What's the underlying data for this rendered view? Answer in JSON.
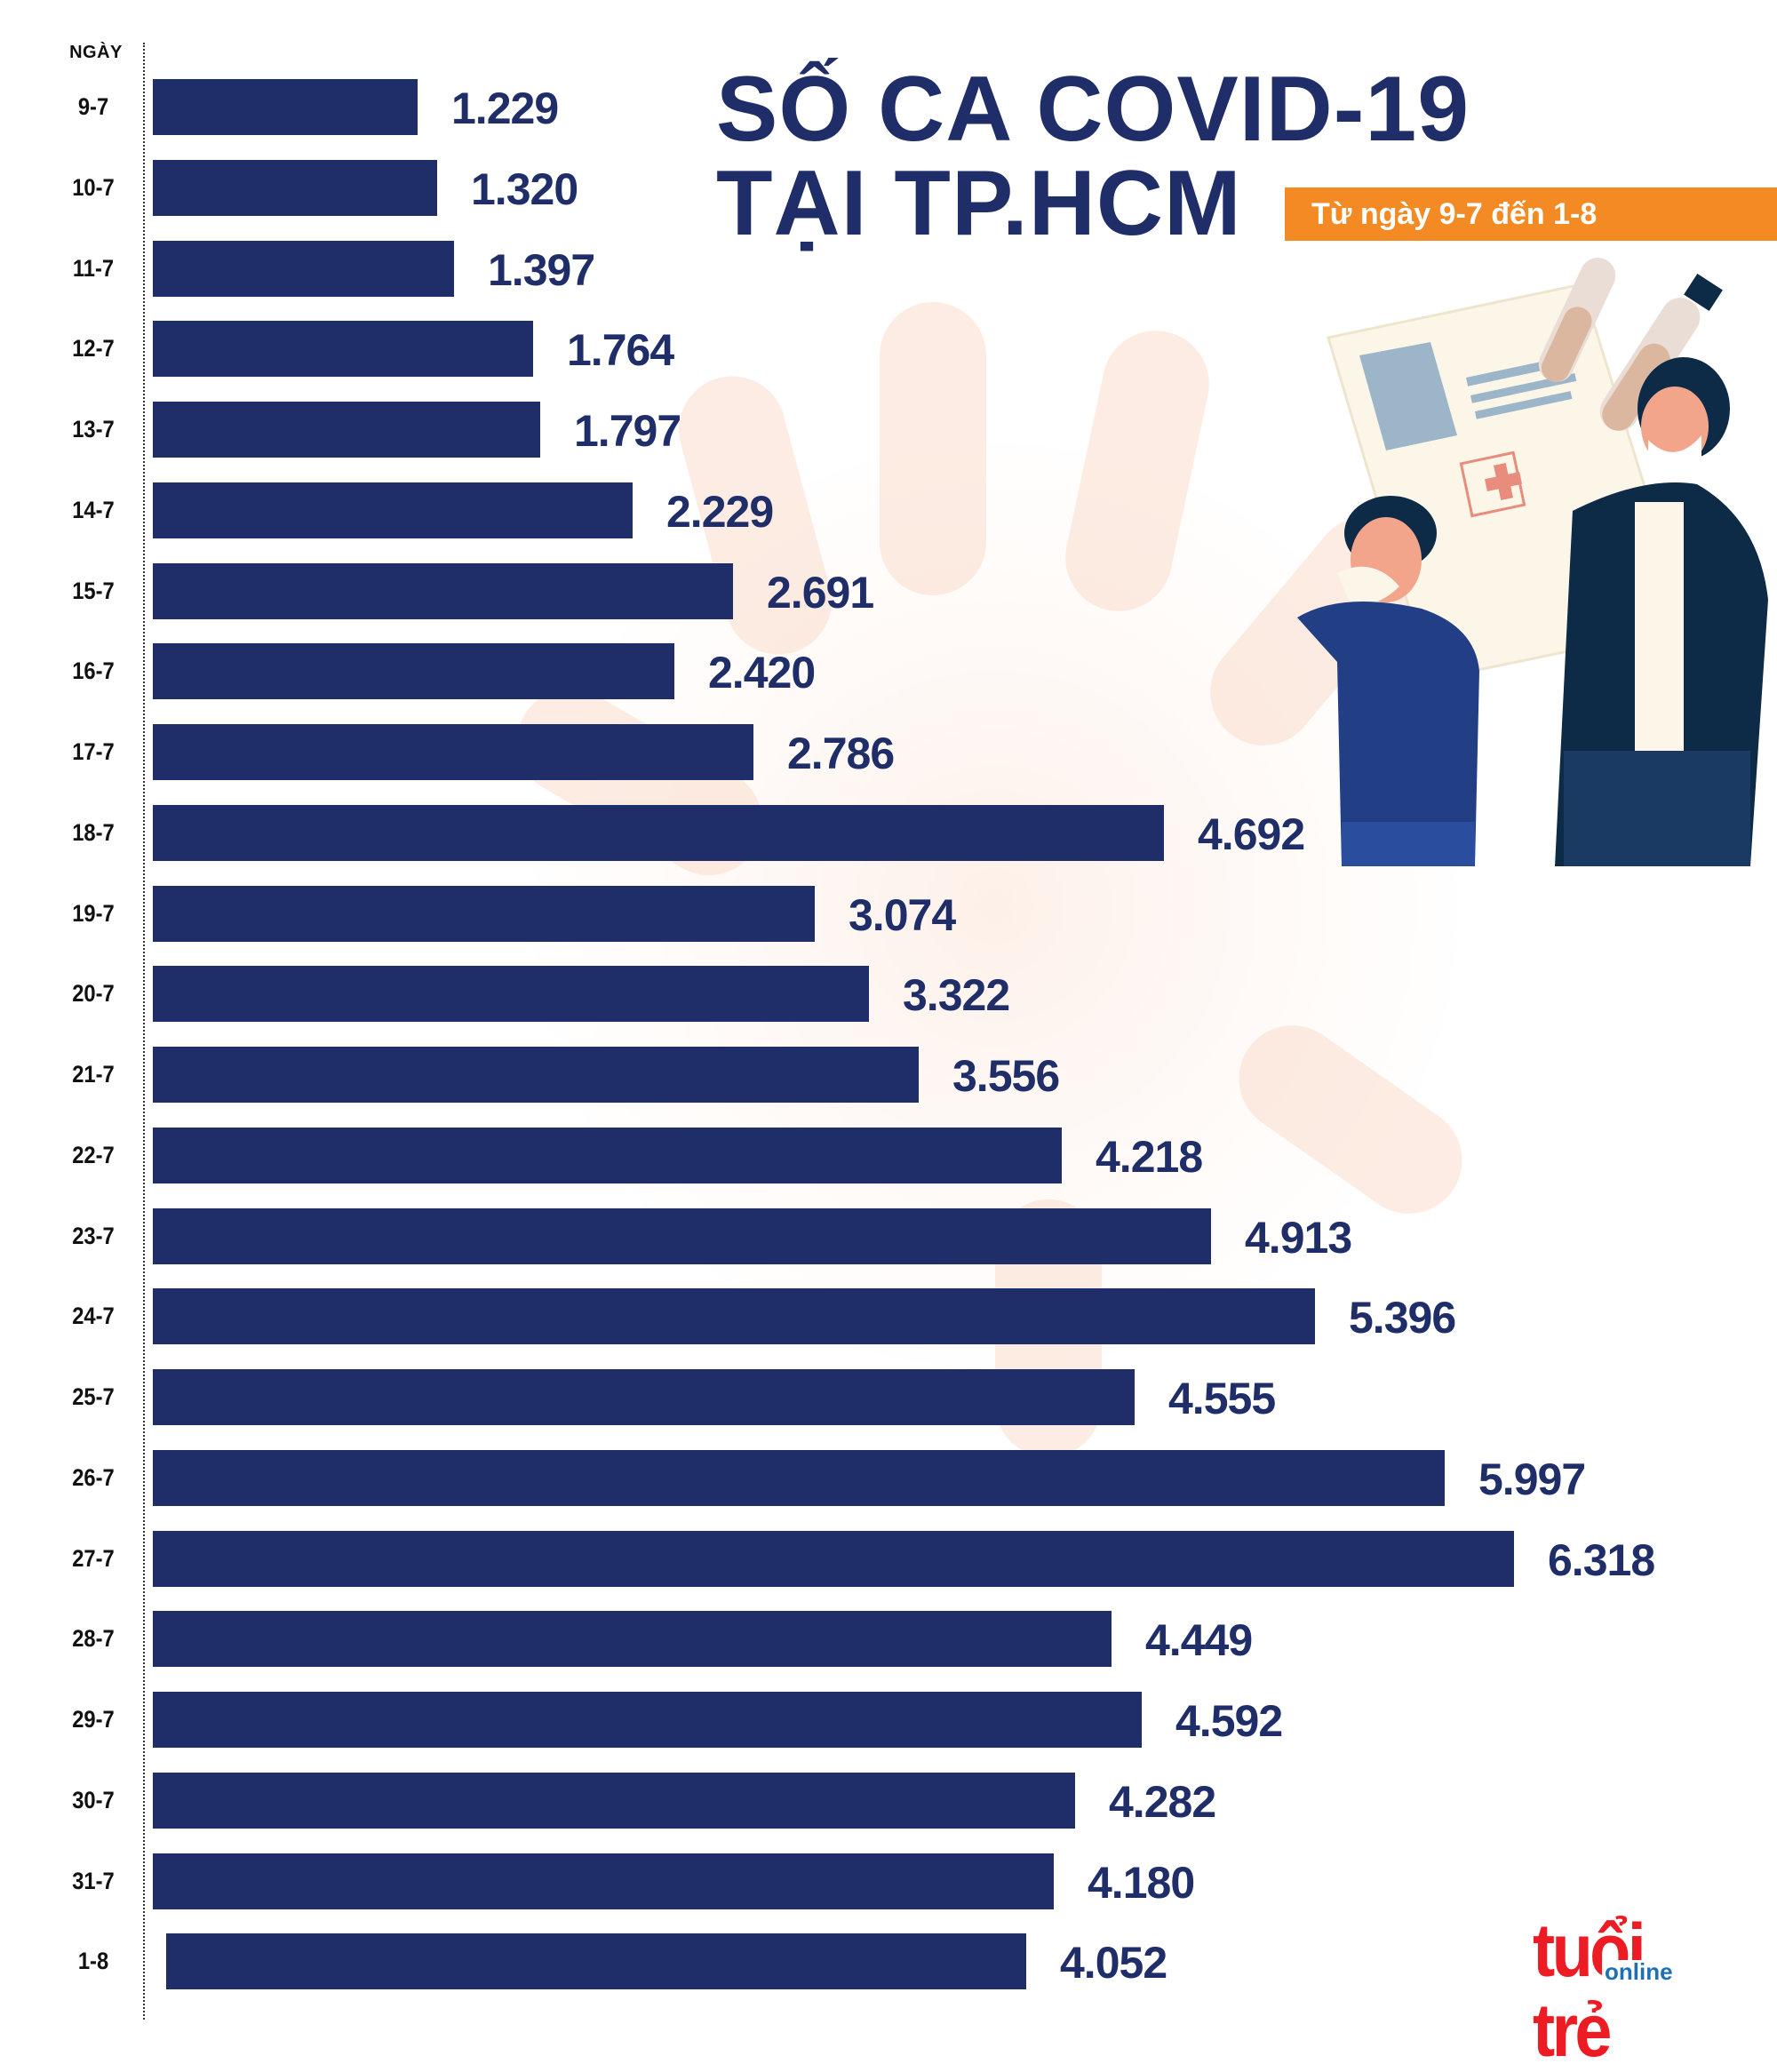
{
  "header": {
    "title_line1": "SỐ CA COVID-19",
    "title_line2": "TẠI TP.HCM",
    "subtitle": "Từ ngày 9-7 đến 1-8"
  },
  "axis": {
    "header": "NGÀY"
  },
  "logo": {
    "main": "tuổi trẻ",
    "sub": "online"
  },
  "colors": {
    "bar": "#1f2e68",
    "value_text": "#1f2e68",
    "title": "#1f2e68",
    "badge": "#f38a23",
    "logo_red": "#ed1c24",
    "logo_blue": "#1d70b8"
  },
  "rows": [
    {
      "label": "9-7",
      "value": 1229,
      "display": "1.229"
    },
    {
      "label": "10-7",
      "value": 1320,
      "display": "1.320"
    },
    {
      "label": "11-7",
      "value": 1397,
      "display": "1.397"
    },
    {
      "label": "12-7",
      "value": 1764,
      "display": "1.764"
    },
    {
      "label": "13-7",
      "value": 1797,
      "display": "1.797"
    },
    {
      "label": "14-7",
      "value": 2229,
      "display": "2.229"
    },
    {
      "label": "15-7",
      "value": 2691,
      "display": "2.691"
    },
    {
      "label": "16-7",
      "value": 2420,
      "display": "2.420"
    },
    {
      "label": "17-7",
      "value": 2786,
      "display": "2.786"
    },
    {
      "label": "18-7",
      "value": 4692,
      "display": "4.692"
    },
    {
      "label": "19-7",
      "value": 3074,
      "display": "3.074"
    },
    {
      "label": "20-7",
      "value": 3322,
      "display": "3.322"
    },
    {
      "label": "21-7",
      "value": 3556,
      "display": "3.556"
    },
    {
      "label": "22-7",
      "value": 4218,
      "display": "4.218"
    },
    {
      "label": "23-7",
      "value": 4913,
      "display": "4.913"
    },
    {
      "label": "24-7",
      "value": 5396,
      "display": "5.396"
    },
    {
      "label": "25-7",
      "value": 4555,
      "display": "4.555"
    },
    {
      "label": "26-7",
      "value": 5997,
      "display": "5.997"
    },
    {
      "label": "27-7",
      "value": 6318,
      "display": "6.318"
    },
    {
      "label": "28-7",
      "value": 4449,
      "display": "4.449"
    },
    {
      "label": "29-7",
      "value": 4592,
      "display": "4.592"
    },
    {
      "label": "30-7",
      "value": 4282,
      "display": "4.282"
    },
    {
      "label": "31-7",
      "value": 4180,
      "display": "4.180"
    },
    {
      "label": "1-8",
      "value": 4052,
      "display": "4.052"
    }
  ],
  "chart_data": {
    "type": "bar",
    "orientation": "horizontal",
    "title": "SỐ CA COVID-19 TẠI TP.HCM",
    "subtitle": "Từ ngày 9-7 đến 1-8",
    "xlabel": "",
    "ylabel": "NGÀY",
    "categories": [
      "9-7",
      "10-7",
      "11-7",
      "12-7",
      "13-7",
      "14-7",
      "15-7",
      "16-7",
      "17-7",
      "18-7",
      "19-7",
      "20-7",
      "21-7",
      "22-7",
      "23-7",
      "24-7",
      "25-7",
      "26-7",
      "27-7",
      "28-7",
      "29-7",
      "30-7",
      "31-7",
      "1-8"
    ],
    "values": [
      1229,
      1320,
      1397,
      1764,
      1797,
      2229,
      2691,
      2420,
      2786,
      4692,
      3074,
      3322,
      3556,
      4218,
      4913,
      5396,
      4555,
      5997,
      6318,
      4449,
      4592,
      4282,
      4180,
      4052
    ],
    "data_labels": [
      "1.229",
      "1.320",
      "1.397",
      "1.764",
      "1.797",
      "2.229",
      "2.691",
      "2.420",
      "2.786",
      "4.692",
      "3.074",
      "3.322",
      "3.556",
      "4.218",
      "4.913",
      "5.396",
      "4.555",
      "5.997",
      "6.318",
      "4.449",
      "4.592",
      "4.282",
      "4.180",
      "4.052"
    ],
    "grid": false,
    "legend": null,
    "xlim": [
      0,
      6318
    ]
  }
}
